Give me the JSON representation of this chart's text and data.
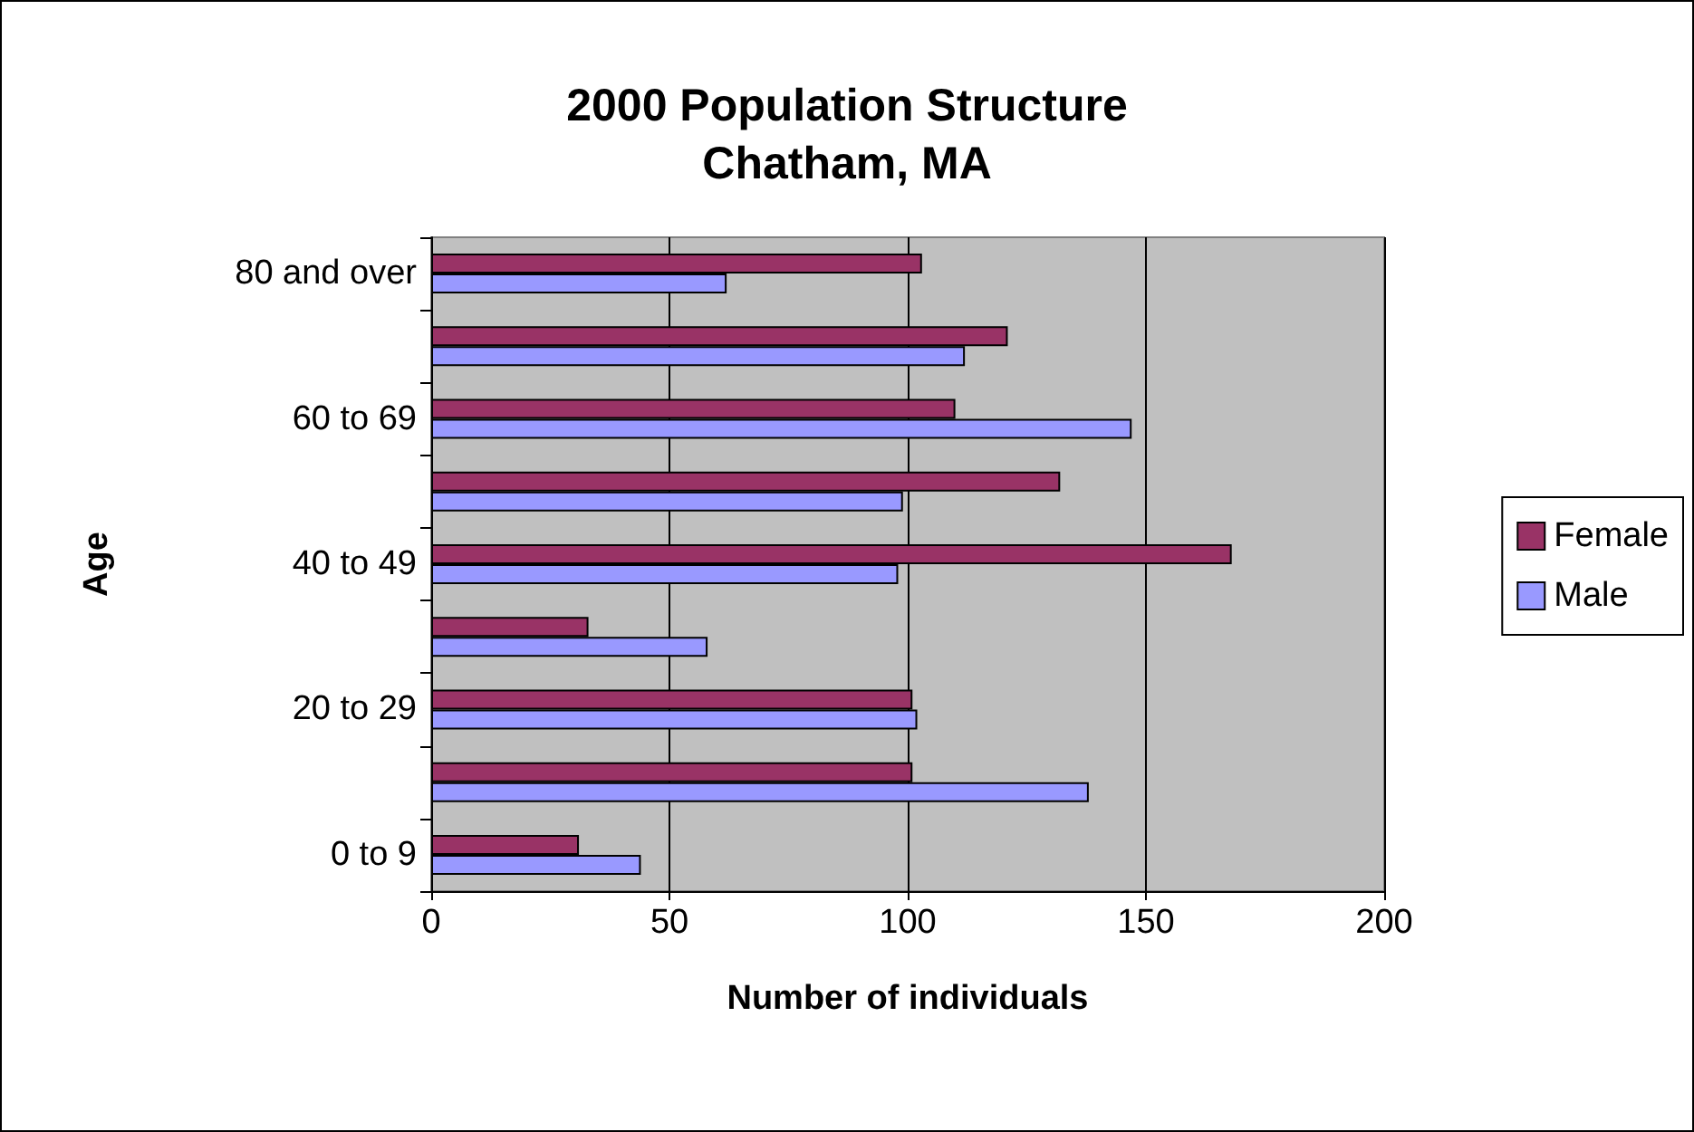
{
  "chart_data": {
    "type": "bar",
    "orientation": "horizontal",
    "title": "2000 Population Structure",
    "subtitle": "Chatham, MA",
    "xlabel": "Number of individuals",
    "ylabel": "Age",
    "categories": [
      "80 and over",
      null,
      "60 to 69",
      null,
      "40 to 49",
      null,
      "20 to 29",
      null,
      "0 to 9"
    ],
    "series": [
      {
        "name": "Female",
        "color": "#993366",
        "values": [
          103,
          121,
          110,
          132,
          168,
          33,
          101,
          101,
          31
        ]
      },
      {
        "name": "Male",
        "color": "#9999ff",
        "values": [
          62,
          112,
          147,
          99,
          98,
          58,
          102,
          138,
          44
        ]
      }
    ],
    "xlim": [
      0,
      200
    ],
    "xticks": [
      0,
      50,
      100,
      150,
      200
    ],
    "grid": "x",
    "legend": "right"
  }
}
